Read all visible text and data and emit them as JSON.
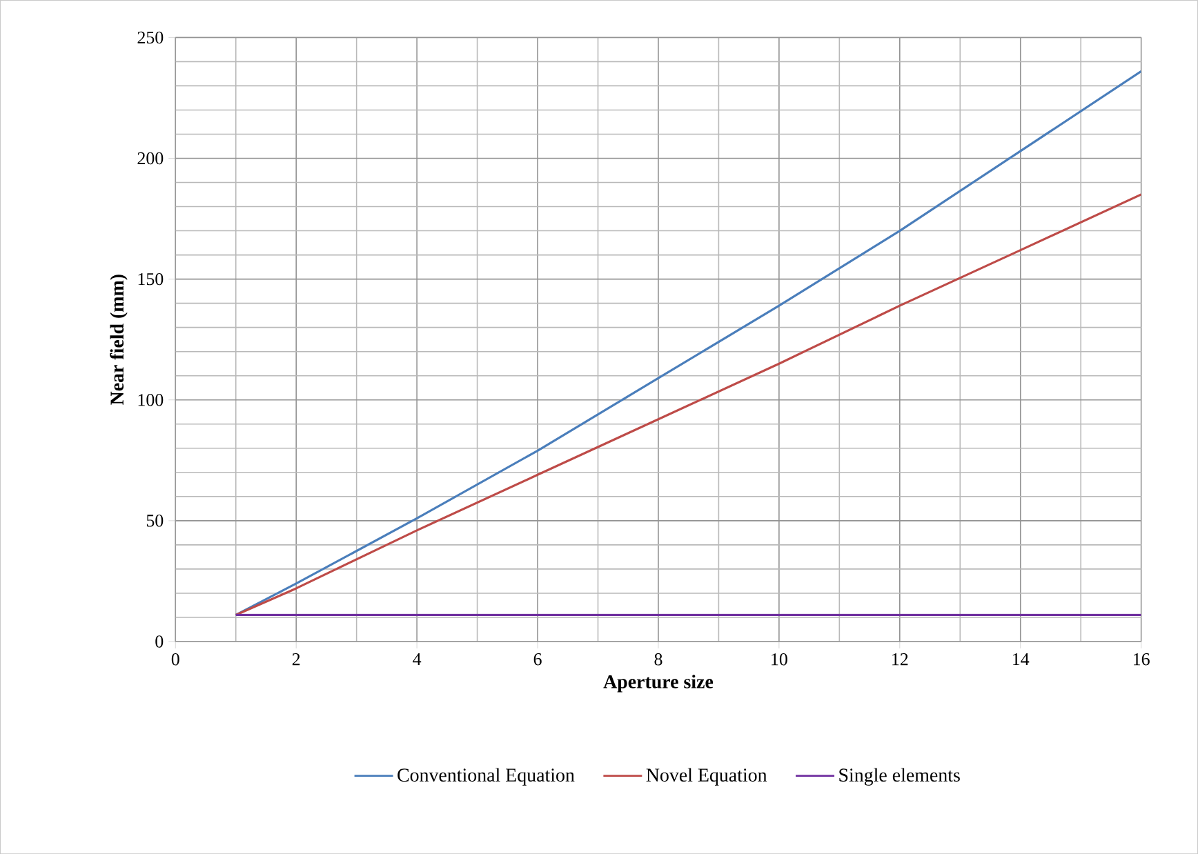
{
  "chart_data": {
    "type": "line",
    "xlabel": "Aperture size",
    "ylabel": "Near field (mm)",
    "x": [
      1,
      2,
      4,
      6,
      8,
      10,
      12,
      14,
      16
    ],
    "series": [
      {
        "name": "Conventional Equation",
        "color": "#4a7ebb",
        "values": [
          11,
          24,
          51,
          79,
          109,
          139,
          170,
          203,
          236
        ]
      },
      {
        "name": "Novel Equation",
        "color": "#be4b48",
        "values": [
          11,
          22,
          46,
          69,
          92,
          115,
          139,
          162,
          185
        ]
      },
      {
        "name": "Single elements",
        "color": "#7030a0",
        "values": [
          11,
          11,
          11,
          11,
          11,
          11,
          11,
          11,
          11
        ]
      }
    ],
    "xlim": [
      0,
      16
    ],
    "xticks": [
      0,
      2,
      4,
      6,
      8,
      10,
      12,
      14,
      16
    ],
    "ylim": [
      0,
      250
    ],
    "yticks": [
      0,
      50,
      100,
      150,
      200,
      250
    ],
    "grid": true,
    "legend": "bottom",
    "marker": "none",
    "line_style": "solid"
  }
}
